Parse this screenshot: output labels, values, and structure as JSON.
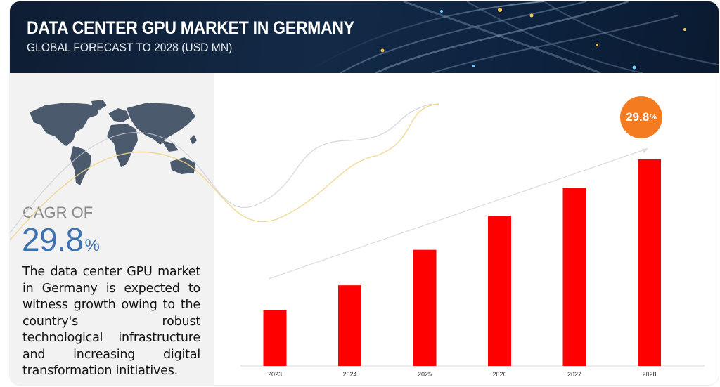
{
  "header": {
    "title": "DATA CENTER GPU MARKET IN GERMANY",
    "subtitle": "GLOBAL FORECAST TO 2028 (USD MN)"
  },
  "summary": {
    "cagr_label": "CAGR OF",
    "cagr_value": "29.8",
    "cagr_unit": "%",
    "description": "The data center GPU market in Germany is expected to witness growth owing to the country's robust technological infrastructure and increasing digital transformation initiatives."
  },
  "badge": {
    "value": "29.8",
    "unit": "%"
  },
  "colors": {
    "bar": "#ff0000",
    "badge": "#f47b20",
    "accent_blue": "#3f72b0",
    "header_bg": "#0e1d33"
  },
  "chart_data": {
    "type": "bar",
    "title": "DATA CENTER GPU MARKET IN GERMANY",
    "subtitle": "GLOBAL FORECAST TO 2028 (USD MN)",
    "categories": [
      "2023",
      "2024",
      "2025",
      "2026",
      "2027",
      "2028"
    ],
    "values": [
      80,
      116,
      167,
      216,
      256,
      297
    ],
    "ylim": [
      0,
      300
    ],
    "grid": false,
    "legend": "none",
    "trend_arrow": true
  }
}
